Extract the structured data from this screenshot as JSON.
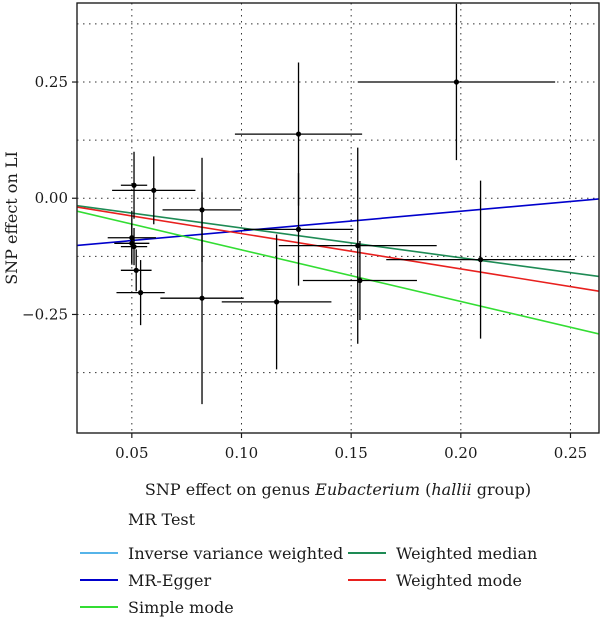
{
  "chart_data": {
    "type": "scatter",
    "x_label_parts": [
      "SNP effect on genus ",
      "Eubacterium",
      " (",
      "hallii",
      " group)"
    ],
    "ylabel": "SNP effect on LI",
    "xlim": [
      0.025,
      0.263
    ],
    "ylim": [
      -0.505,
      0.42
    ],
    "x_ticks": [
      0.05,
      0.1,
      0.15,
      0.2,
      0.25
    ],
    "x_tick_labels": [
      "0.05",
      "0.10",
      "0.15",
      "0.20",
      "0.25"
    ],
    "y_ticks": [
      -0.25,
      0.0,
      0.25
    ],
    "y_tick_labels": [
      "−0.25",
      "0.00",
      "0.25"
    ],
    "x_grid": [
      0.05,
      0.1,
      0.15,
      0.2,
      0.25
    ],
    "y_grid": [
      -0.375,
      -0.25,
      -0.125,
      0.0,
      0.125,
      0.25,
      0.375
    ],
    "grid": true,
    "points": [
      {
        "x": 0.198,
        "y": 0.25,
        "xerr": 0.045,
        "yerr": 0.168
      },
      {
        "x": 0.126,
        "y": 0.138,
        "xerr": 0.029,
        "yerr": 0.154
      },
      {
        "x": 0.051,
        "y": 0.028,
        "xerr": 0.006,
        "yerr": 0.072
      },
      {
        "x": 0.06,
        "y": 0.017,
        "xerr": 0.019,
        "yerr": 0.073
      },
      {
        "x": 0.082,
        "y": -0.025,
        "xerr": 0.018,
        "yerr": 0.112
      },
      {
        "x": 0.126,
        "y": -0.067,
        "xerr": 0.025,
        "yerr": 0.121
      },
      {
        "x": 0.05,
        "y": -0.085,
        "xerr": 0.011,
        "yerr": 0.058
      },
      {
        "x": 0.05,
        "y": -0.097,
        "xerr": 0.008,
        "yerr": 0.042
      },
      {
        "x": 0.051,
        "y": -0.104,
        "xerr": 0.006,
        "yerr": 0.04
      },
      {
        "x": 0.153,
        "y": -0.102,
        "xerr": 0.036,
        "yerr": 0.211
      },
      {
        "x": 0.052,
        "y": -0.155,
        "xerr": 0.007,
        "yerr": 0.045
      },
      {
        "x": 0.209,
        "y": -0.132,
        "xerr": 0.043,
        "yerr": 0.17
      },
      {
        "x": 0.154,
        "y": -0.177,
        "xerr": 0.026,
        "yerr": 0.085
      },
      {
        "x": 0.054,
        "y": -0.203,
        "xerr": 0.011,
        "yerr": 0.07
      },
      {
        "x": 0.082,
        "y": -0.215,
        "xerr": 0.019,
        "yerr": 0.228
      },
      {
        "x": 0.116,
        "y": -0.223,
        "xerr": 0.025,
        "yerr": 0.145
      }
    ],
    "legend_title": "MR Test",
    "series": [
      {
        "name": "Inverse variance weighted",
        "color": "#56B4E9",
        "intercept": 0.0,
        "slope": -0.66,
        "draw": false
      },
      {
        "name": "MR-Egger",
        "color": "#0000CC",
        "intercept": -0.112,
        "slope": 0.42,
        "draw": true
      },
      {
        "name": "Simple mode",
        "color": "#33DD33",
        "intercept": 0.0,
        "slope": -1.11,
        "draw": true
      },
      {
        "name": "Weighted median",
        "color": "#1E8B55",
        "intercept": 0.0,
        "slope": -0.64,
        "draw": true
      },
      {
        "name": "Weighted mode",
        "color": "#E8201E",
        "intercept": 0.0,
        "slope": -0.76,
        "draw": true
      }
    ]
  }
}
